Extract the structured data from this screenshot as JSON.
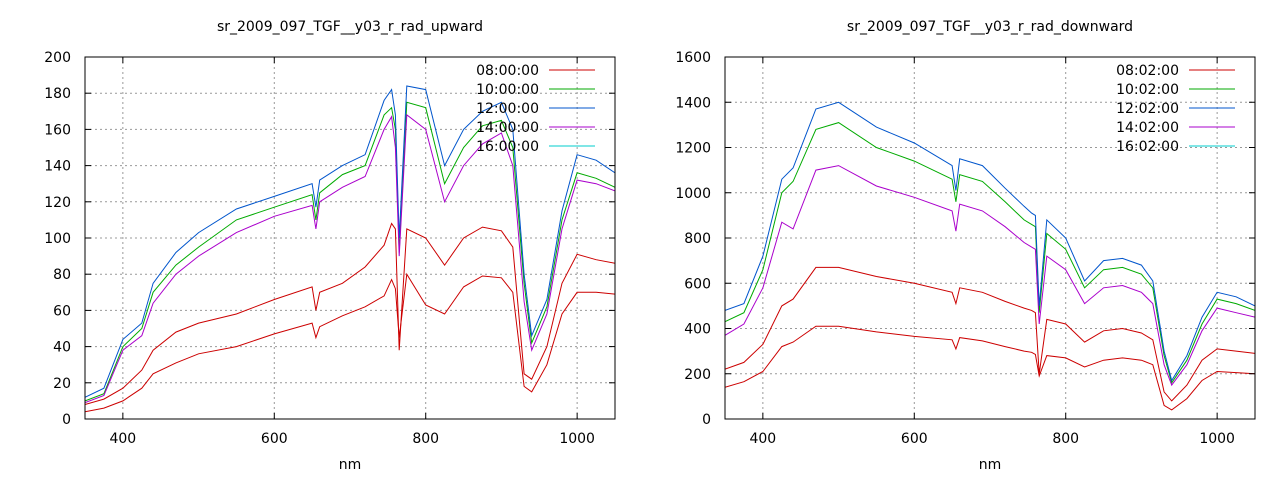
{
  "chart_data": [
    {
      "type": "line",
      "title": "sr_2009_097_TGF__y03_r_rad_upward",
      "xlabel": "nm",
      "ylabel": "",
      "xlim": [
        350,
        1050
      ],
      "ylim": [
        0,
        200
      ],
      "xticks": [
        400,
        600,
        800,
        1000
      ],
      "yticks": [
        0,
        20,
        40,
        60,
        80,
        100,
        120,
        140,
        160,
        180,
        200
      ],
      "grid": true,
      "legend_position": "top-right",
      "series": [
        {
          "name": "08:00:00",
          "color": "#cc0000",
          "x": [
            350,
            375,
            400,
            425,
            440,
            470,
            500,
            550,
            600,
            650,
            655,
            660,
            690,
            720,
            745,
            755,
            760,
            765,
            775,
            800,
            825,
            850,
            875,
            900,
            915,
            930,
            940,
            960,
            980,
            1000,
            1025,
            1050
          ],
          "y": [
            8,
            11,
            17,
            27,
            38,
            48,
            53,
            58,
            66,
            73,
            60,
            70,
            75,
            84,
            96,
            108,
            105,
            38,
            105,
            100,
            85,
            100,
            106,
            104,
            95,
            25,
            22,
            40,
            75,
            91,
            88,
            86
          ],
          "y2": [
            4,
            6,
            10,
            17,
            25,
            31,
            36,
            40,
            47,
            53,
            45,
            51,
            57,
            62,
            68,
            77,
            72,
            45,
            80,
            63,
            58,
            73,
            79,
            78,
            70,
            18,
            15,
            30,
            58,
            70,
            70,
            69
          ]
        },
        {
          "name": "10:00:00",
          "color": "#00aa00",
          "x": [
            350,
            375,
            400,
            425,
            440,
            470,
            500,
            550,
            600,
            650,
            655,
            660,
            690,
            720,
            745,
            755,
            760,
            765,
            775,
            800,
            825,
            850,
            875,
            900,
            915,
            930,
            940,
            960,
            980,
            1000,
            1025,
            1050
          ],
          "y": [
            10,
            14,
            40,
            50,
            70,
            85,
            95,
            110,
            117,
            124,
            110,
            125,
            135,
            140,
            168,
            172,
            160,
            92,
            175,
            172,
            130,
            150,
            162,
            165,
            150,
            75,
            42,
            62,
            110,
            136,
            133,
            128
          ]
        },
        {
          "name": "12:00:00",
          "color": "#0055cc",
          "x": [
            350,
            375,
            400,
            425,
            440,
            470,
            500,
            550,
            600,
            650,
            655,
            660,
            690,
            720,
            745,
            755,
            760,
            765,
            775,
            800,
            825,
            850,
            875,
            900,
            915,
            930,
            940,
            960,
            980,
            1000,
            1025,
            1050
          ],
          "y": [
            12,
            17,
            44,
            53,
            75,
            92,
            103,
            116,
            123,
            130,
            117,
            132,
            140,
            146,
            176,
            182,
            168,
            100,
            184,
            182,
            140,
            160,
            170,
            175,
            160,
            80,
            46,
            66,
            115,
            146,
            143,
            136
          ]
        },
        {
          "name": "14:00:00",
          "color": "#aa00cc",
          "x": [
            350,
            375,
            400,
            425,
            440,
            470,
            500,
            550,
            600,
            650,
            655,
            660,
            690,
            720,
            745,
            755,
            760,
            765,
            775,
            800,
            825,
            850,
            875,
            900,
            915,
            930,
            940,
            960,
            980,
            1000,
            1025,
            1050
          ],
          "y": [
            9,
            13,
            38,
            46,
            64,
            80,
            90,
            103,
            112,
            118,
            105,
            120,
            128,
            134,
            160,
            167,
            150,
            90,
            168,
            160,
            120,
            140,
            152,
            158,
            140,
            65,
            38,
            58,
            105,
            132,
            130,
            126
          ]
        },
        {
          "name": "16:00:00",
          "color": "#00cccc",
          "x": [],
          "y": []
        }
      ]
    },
    {
      "type": "line",
      "title": "sr_2009_097_TGF__y03_r_rad_downward",
      "xlabel": "nm",
      "ylabel": "",
      "xlim": [
        350,
        1050
      ],
      "ylim": [
        0,
        1600
      ],
      "xticks": [
        400,
        600,
        800,
        1000
      ],
      "yticks": [
        0,
        200,
        400,
        600,
        800,
        1000,
        1200,
        1400,
        1600
      ],
      "grid": true,
      "legend_position": "top-right",
      "series": [
        {
          "name": "08:02:00",
          "color": "#cc0000",
          "x": [
            350,
            375,
            400,
            425,
            440,
            470,
            500,
            550,
            600,
            650,
            655,
            660,
            690,
            720,
            745,
            755,
            760,
            765,
            775,
            800,
            825,
            850,
            875,
            900,
            915,
            930,
            940,
            960,
            980,
            1000,
            1025,
            1050
          ],
          "y": [
            220,
            250,
            330,
            500,
            530,
            670,
            670,
            630,
            600,
            560,
            510,
            580,
            560,
            520,
            490,
            480,
            470,
            200,
            440,
            420,
            340,
            390,
            400,
            380,
            350,
            120,
            80,
            150,
            260,
            310,
            300,
            290
          ],
          "y2": [
            140,
            165,
            210,
            320,
            340,
            410,
            410,
            385,
            365,
            350,
            310,
            360,
            345,
            320,
            300,
            295,
            285,
            190,
            280,
            270,
            230,
            260,
            270,
            260,
            240,
            60,
            40,
            90,
            170,
            210,
            205,
            200
          ]
        },
        {
          "name": "10:02:00",
          "color": "#00aa00",
          "x": [
            350,
            375,
            400,
            425,
            440,
            470,
            500,
            550,
            600,
            650,
            655,
            660,
            690,
            720,
            745,
            755,
            760,
            765,
            775,
            800,
            825,
            850,
            875,
            900,
            915,
            930,
            940,
            960,
            980,
            1000,
            1025,
            1050
          ],
          "y": [
            430,
            470,
            660,
            1000,
            1050,
            1280,
            1310,
            1200,
            1140,
            1060,
            960,
            1080,
            1050,
            960,
            880,
            860,
            850,
            470,
            820,
            750,
            580,
            660,
            670,
            640,
            580,
            280,
            160,
            260,
            420,
            530,
            510,
            480
          ]
        },
        {
          "name": "12:02:00",
          "color": "#0055cc",
          "x": [
            350,
            375,
            400,
            425,
            440,
            470,
            500,
            550,
            600,
            650,
            655,
            660,
            690,
            720,
            745,
            755,
            760,
            765,
            775,
            800,
            825,
            850,
            875,
            900,
            915,
            930,
            940,
            960,
            980,
            1000,
            1025,
            1050
          ],
          "y": [
            480,
            510,
            720,
            1060,
            1110,
            1370,
            1400,
            1290,
            1220,
            1120,
            1010,
            1150,
            1120,
            1020,
            940,
            910,
            900,
            500,
            880,
            800,
            610,
            700,
            710,
            680,
            610,
            300,
            170,
            280,
            450,
            560,
            540,
            500
          ]
        },
        {
          "name": "14:02:00",
          "color": "#aa00cc",
          "x": [
            350,
            375,
            400,
            425,
            440,
            470,
            500,
            550,
            600,
            650,
            655,
            660,
            690,
            720,
            745,
            755,
            760,
            765,
            775,
            800,
            825,
            850,
            875,
            900,
            915,
            930,
            940,
            960,
            980,
            1000,
            1025,
            1050
          ],
          "y": [
            370,
            420,
            580,
            870,
            840,
            1100,
            1120,
            1030,
            980,
            920,
            830,
            950,
            920,
            850,
            780,
            760,
            750,
            420,
            720,
            660,
            510,
            580,
            590,
            560,
            510,
            240,
            150,
            240,
            390,
            490,
            470,
            450
          ]
        },
        {
          "name": "16:02:00",
          "color": "#00cccc",
          "x": [],
          "y": []
        }
      ]
    }
  ]
}
